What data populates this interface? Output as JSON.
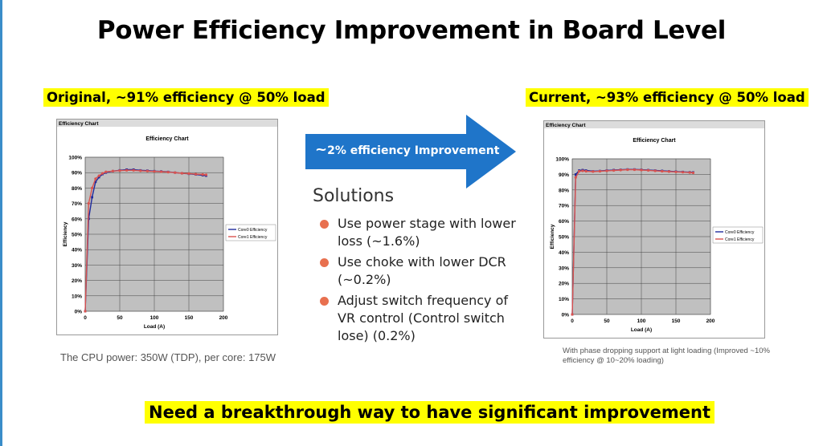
{
  "slide": {
    "title": "Power Efficiency Improvement in Board Level",
    "original_label": "Original, ~91% efficiency @ 50% load",
    "current_label": "Current, ~93% efficiency @ 50% load",
    "arrow_text_tilde": "~",
    "arrow_text": "2% efficiency Improvement",
    "solutions_title": "Solutions",
    "solutions": [
      "Use power stage with lower  loss (~1.6%)",
      "Use choke with lower DCR (~0.2%)",
      "Adjust switch frequency of VR control (Control switch lose) (0.2%)"
    ],
    "note_left": "The CPU power: 350W (TDP), per core: 175W",
    "note_right": "With phase dropping support at light loading (Improved ~10% efficiency @ 10~20% loading)",
    "bottom_banner": "Need a breakthrough way to have significant improvement",
    "colors": {
      "core0": "#1f2a9c",
      "core1": "#d9534f",
      "plot_bg": "#c0c0c0",
      "arrow": "#1f75c9"
    }
  },
  "chart_data": [
    {
      "type": "line",
      "window_title": "Efficiency Chart",
      "title": "Efficiency Chart",
      "xlabel": "Load (A)",
      "ylabel": "Efficiency",
      "xlim": [
        0,
        200
      ],
      "ylim": [
        0,
        100
      ],
      "x_ticks": [
        "0",
        "50",
        "100",
        "150",
        "200"
      ],
      "y_ticks": [
        "0%",
        "10%",
        "20%",
        "30%",
        "40%",
        "50%",
        "60%",
        "70%",
        "80%",
        "90%",
        "100%"
      ],
      "legend_position": "right",
      "grid": true,
      "series": [
        {
          "name": "Core0 Efficiency",
          "x": [
            0,
            5,
            10,
            15,
            20,
            25,
            30,
            40,
            50,
            60,
            70,
            80,
            90,
            100,
            110,
            120,
            130,
            140,
            150,
            160,
            170,
            175
          ],
          "y": [
            0,
            60,
            74,
            84,
            87,
            89,
            90,
            91,
            91.5,
            92,
            92,
            91.5,
            91.3,
            91,
            90.8,
            90.5,
            90,
            89.6,
            89.2,
            88.8,
            88.3,
            88
          ]
        },
        {
          "name": "Core1 Efficiency",
          "x": [
            0,
            5,
            10,
            15,
            20,
            25,
            30,
            40,
            50,
            60,
            70,
            80,
            90,
            100,
            110,
            120,
            130,
            140,
            150,
            160,
            170,
            175
          ],
          "y": [
            0,
            70,
            80,
            86,
            88,
            89.5,
            90.5,
            91,
            91.3,
            91.5,
            91.5,
            91.2,
            91,
            90.8,
            90.6,
            90.3,
            90,
            89.6,
            89.4,
            89,
            88.8,
            88.6
          ]
        }
      ]
    },
    {
      "type": "line",
      "window_title": "Efficiency Chart",
      "title": "Efficiency Chart",
      "xlabel": "Load (A)",
      "ylabel": "Efficiency",
      "xlim": [
        0,
        200
      ],
      "ylim": [
        0,
        100
      ],
      "x_ticks": [
        "0",
        "50",
        "100",
        "150",
        "200"
      ],
      "y_ticks": [
        "0%",
        "10%",
        "20%",
        "30%",
        "40%",
        "50%",
        "60%",
        "70%",
        "80%",
        "90%",
        "100%"
      ],
      "legend_position": "right",
      "grid": true,
      "series": [
        {
          "name": "Core0 Efficiency",
          "x": [
            0,
            5,
            10,
            15,
            20,
            30,
            40,
            50,
            60,
            70,
            80,
            90,
            100,
            110,
            120,
            130,
            140,
            150,
            160,
            170,
            175
          ],
          "y": [
            0,
            90,
            92.5,
            92.8,
            92.5,
            92,
            92.2,
            92.5,
            92.8,
            93,
            93.2,
            93.2,
            93,
            92.8,
            92.5,
            92.3,
            92,
            91.8,
            91.6,
            91.4,
            91.3
          ]
        },
        {
          "name": "Core1 Efficiency",
          "x": [
            0,
            5,
            10,
            15,
            20,
            30,
            40,
            50,
            60,
            70,
            80,
            90,
            100,
            110,
            120,
            130,
            140,
            150,
            160,
            170,
            175
          ],
          "y": [
            0,
            88,
            92,
            92.3,
            92,
            91.8,
            92,
            92.3,
            92.5,
            92.8,
            93,
            93,
            92.8,
            92.6,
            92.3,
            92,
            91.8,
            91.6,
            91.4,
            91.2,
            91
          ]
        }
      ]
    }
  ]
}
